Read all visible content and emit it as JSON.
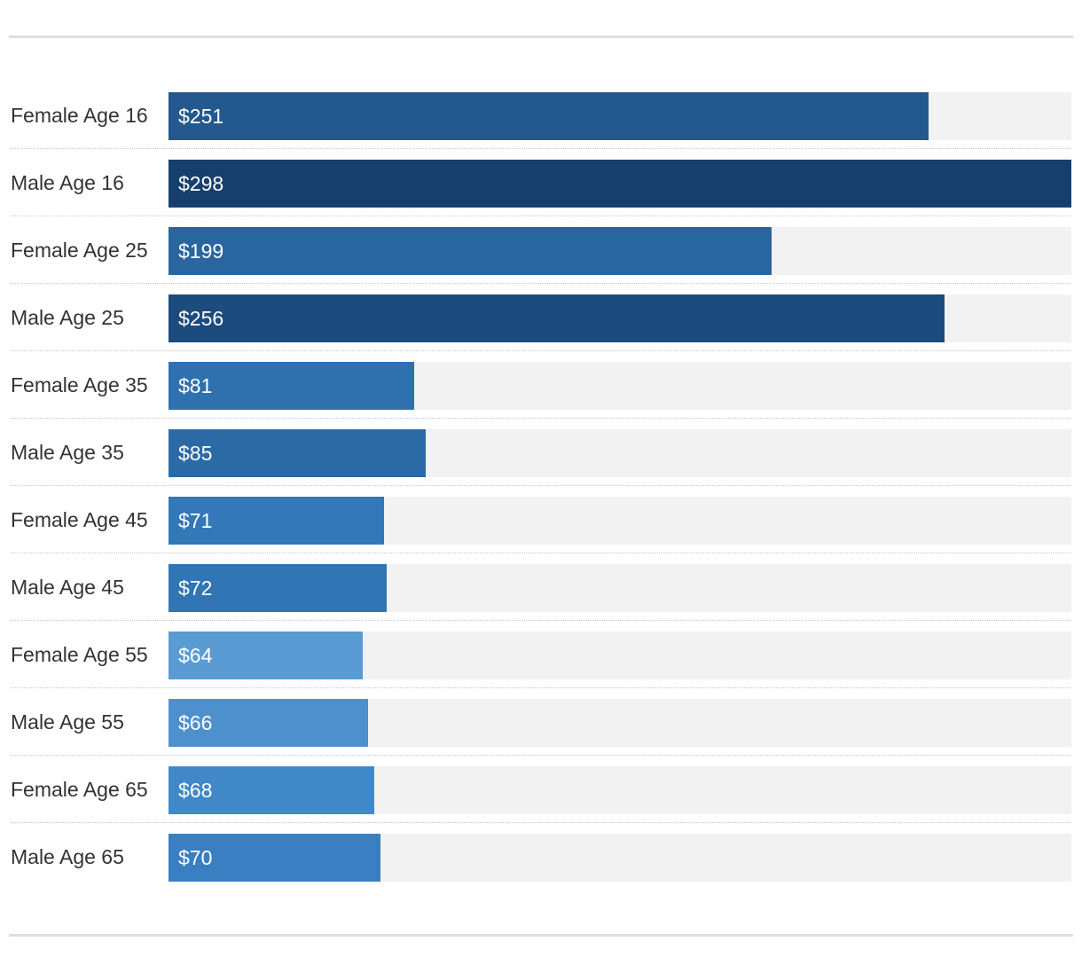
{
  "chart_data": {
    "type": "bar",
    "orientation": "horizontal",
    "title": "",
    "xlabel": "",
    "ylabel": "",
    "xlim": [
      0,
      298
    ],
    "categories": [
      "Female Age 16",
      "Male Age 16",
      "Female Age 25",
      "Male Age 25",
      "Female Age 35",
      "Male Age 35",
      "Female Age 45",
      "Male Age 45",
      "Female Age 55",
      "Male Age 55",
      "Female Age 65",
      "Male Age 65"
    ],
    "values": [
      251,
      298,
      199,
      256,
      81,
      85,
      71,
      72,
      64,
      66,
      68,
      70
    ],
    "value_labels": [
      "$251",
      "$298",
      "$199",
      "$256",
      "$81",
      "$85",
      "$71",
      "$72",
      "$64",
      "$66",
      "$68",
      "$70"
    ],
    "bar_colors": [
      "#23598e",
      "#163f6d",
      "#2966a0",
      "#1c4b7e",
      "#2f70ae",
      "#2c6aa6",
      "#3378b7",
      "#3175b4",
      "#5a9bd3",
      "#4d90cd",
      "#4088c7",
      "#3a7fc1"
    ],
    "track_color": "#f2f2f2",
    "grid": false
  }
}
